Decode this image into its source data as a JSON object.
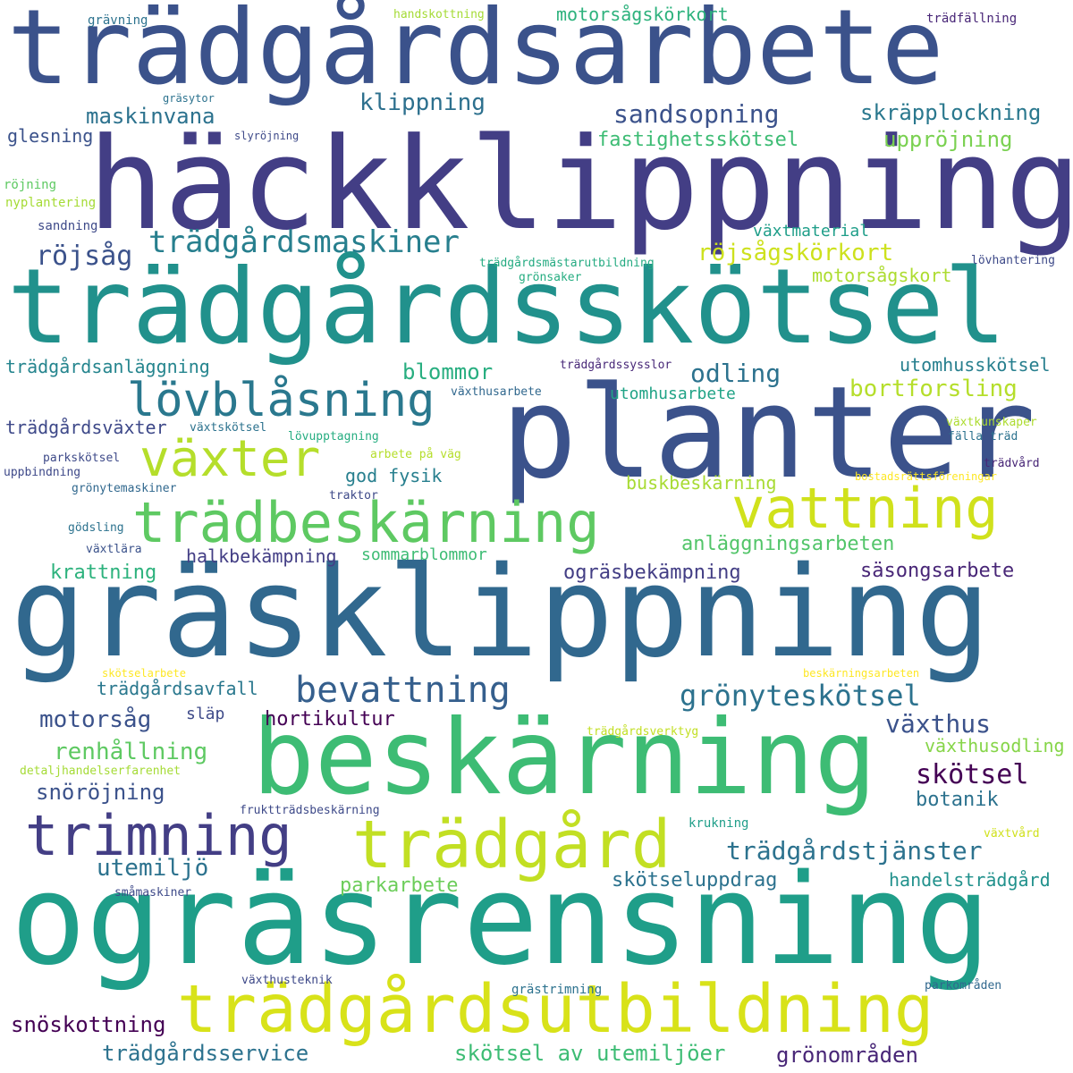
{
  "words": [
    {
      "text": "trädgårdsarbete",
      "color": "#3b528b"
    },
    {
      "text": "häckklippning",
      "color": "#433e85"
    },
    {
      "text": "trädgårdsskötsel",
      "color": "#21918c"
    },
    {
      "text": "planter",
      "color": "#3b528b"
    },
    {
      "text": "gräsklippning",
      "color": "#31688e"
    },
    {
      "text": "beskärning",
      "color": "#3dbc74"
    },
    {
      "text": "ogräsrensning",
      "color": "#1f9e89"
    },
    {
      "text": "trädgårdsutbildning",
      "color": "#d8e219"
    },
    {
      "text": "trädgård",
      "color": "#c2df23"
    },
    {
      "text": "trimning",
      "color": "#433e85"
    },
    {
      "text": "trädbeskärning",
      "color": "#5ec962"
    },
    {
      "text": "vattning",
      "color": "#d0e11c"
    },
    {
      "text": "växter",
      "color": "#b5de2b"
    },
    {
      "text": "lövblåsning",
      "color": "#2a788e"
    },
    {
      "text": "bevattning",
      "color": "#355f8d"
    },
    {
      "text": "trädgårdsmaskiner",
      "color": "#277f8e"
    },
    {
      "text": "grönyteskötsel",
      "color": "#2c728e"
    },
    {
      "text": "trädgårdstjänster",
      "color": "#2c728e"
    },
    {
      "text": "motorsågskörkort",
      "color": "#2db27d"
    },
    {
      "text": "klippning",
      "color": "#2d708e"
    },
    {
      "text": "sandsopning",
      "color": "#3b528b"
    },
    {
      "text": "skräpplockning",
      "color": "#2a788e"
    },
    {
      "text": "maskinvana",
      "color": "#2c728e"
    },
    {
      "text": "fastighetsskötsel",
      "color": "#3dbc74"
    },
    {
      "text": "uppröjning",
      "color": "#7ad151"
    },
    {
      "text": "glesning",
      "color": "#3b528b"
    },
    {
      "text": "gräsytor",
      "color": "#2c728e"
    },
    {
      "text": "slyröjning",
      "color": "#3e4a89"
    },
    {
      "text": "grävning",
      "color": "#2c728e"
    },
    {
      "text": "handskottning",
      "color": "#a5db36"
    },
    {
      "text": "trädfällning",
      "color": "#482677"
    },
    {
      "text": "röjning",
      "color": "#5ec962"
    },
    {
      "text": "nyplantering",
      "color": "#a5db36"
    },
    {
      "text": "sandning",
      "color": "#3e4a89"
    },
    {
      "text": "röjsåg",
      "color": "#3b528b"
    },
    {
      "text": "växtmaterial",
      "color": "#1f9e89"
    },
    {
      "text": "röjsågskörkort",
      "color": "#cde11d"
    },
    {
      "text": "motorsågskort",
      "color": "#addc30"
    },
    {
      "text": "trädgårdsmästarutbildning",
      "color": "#25ab82"
    },
    {
      "text": "grönsaker",
      "color": "#26ad81"
    },
    {
      "text": "lövhantering",
      "color": "#3e4a89"
    },
    {
      "text": "trädgårdsanläggning",
      "color": "#25858e"
    },
    {
      "text": "blommor",
      "color": "#28ae80"
    },
    {
      "text": "odling",
      "color": "#2c728e"
    },
    {
      "text": "utomhusskötsel",
      "color": "#277f8e"
    },
    {
      "text": "trädgårdssysslor",
      "color": "#482878"
    },
    {
      "text": "bortforsling",
      "color": "#b5de2b"
    },
    {
      "text": "växthusarbete",
      "color": "#31688e"
    },
    {
      "text": "utomhusarbete",
      "color": "#20a386"
    },
    {
      "text": "trädgårdsväxter",
      "color": "#3e4989"
    },
    {
      "text": "växtskötsel",
      "color": "#2c728e"
    },
    {
      "text": "lövupptagning",
      "color": "#26ad81"
    },
    {
      "text": "växtkunskaper",
      "color": "#addc30"
    },
    {
      "text": "arbete på väg",
      "color": "#b5de2b"
    },
    {
      "text": "fälla träd",
      "color": "#2c728e"
    },
    {
      "text": "parkskötsel",
      "color": "#3e4a89"
    },
    {
      "text": "god fysik",
      "color": "#277f8e"
    },
    {
      "text": "trädvård",
      "color": "#482677"
    },
    {
      "text": "uppbindning",
      "color": "#3e4989"
    },
    {
      "text": "bostadsrättsföreningar",
      "color": "#fde725"
    },
    {
      "text": "buskbeskärning",
      "color": "#a8db34"
    },
    {
      "text": "grönytemaskiner",
      "color": "#31688e"
    },
    {
      "text": "traktor",
      "color": "#3e4a89"
    },
    {
      "text": "anläggningsarbeten",
      "color": "#52c569"
    },
    {
      "text": "gödsling",
      "color": "#2c728e"
    },
    {
      "text": "växtlära",
      "color": "#3b528b"
    },
    {
      "text": "halkbekämpning",
      "color": "#433e85"
    },
    {
      "text": "sommarblommor",
      "color": "#3dbc74"
    },
    {
      "text": "krattning",
      "color": "#2db27d"
    },
    {
      "text": "ogräsbekämpning",
      "color": "#433e85"
    },
    {
      "text": "säsongsarbete",
      "color": "#482677"
    },
    {
      "text": "skötselarbete",
      "color": "#fde725"
    },
    {
      "text": "beskärningsarbeten",
      "color": "#fde725"
    },
    {
      "text": "trädgårdsavfall",
      "color": "#2a788e"
    },
    {
      "text": "motorsåg",
      "color": "#3b528b"
    },
    {
      "text": "släp",
      "color": "#3e4a89"
    },
    {
      "text": "hortikultur",
      "color": "#440154"
    },
    {
      "text": "växthus",
      "color": "#3b528b"
    },
    {
      "text": "renhållning",
      "color": "#5ec962"
    },
    {
      "text": "trädgårdsverktyg",
      "color": "#c2df23"
    },
    {
      "text": "växthusodling",
      "color": "#86d549"
    },
    {
      "text": "detaljhandelserfarenhet",
      "color": "#a5db36"
    },
    {
      "text": "skötsel",
      "color": "#440154"
    },
    {
      "text": "snöröjning",
      "color": "#3b528b"
    },
    {
      "text": "botanik",
      "color": "#2c728e"
    },
    {
      "text": "fruktträdsbeskärning",
      "color": "#3e4a89"
    },
    {
      "text": "krukning",
      "color": "#1f9e89"
    },
    {
      "text": "växtvård",
      "color": "#d0e11c"
    },
    {
      "text": "utemiljö",
      "color": "#2c728e"
    },
    {
      "text": "parkarbete",
      "color": "#6ccd5a"
    },
    {
      "text": "skötseluppdrag",
      "color": "#2c728e"
    },
    {
      "text": "handelsträdgård",
      "color": "#21918c"
    },
    {
      "text": "småmaskiner",
      "color": "#3e4a89"
    },
    {
      "text": "växthusteknik",
      "color": "#3e4989"
    },
    {
      "text": "grästrimning",
      "color": "#2c728e"
    },
    {
      "text": "parkområden",
      "color": "#31688e"
    },
    {
      "text": "snöskottning",
      "color": "#440154"
    },
    {
      "text": "trädgårdsservice",
      "color": "#2c728e"
    },
    {
      "text": "skötsel av utemiljöer",
      "color": "#3dbc74"
    },
    {
      "text": "grönområden",
      "color": "#482677"
    }
  ]
}
